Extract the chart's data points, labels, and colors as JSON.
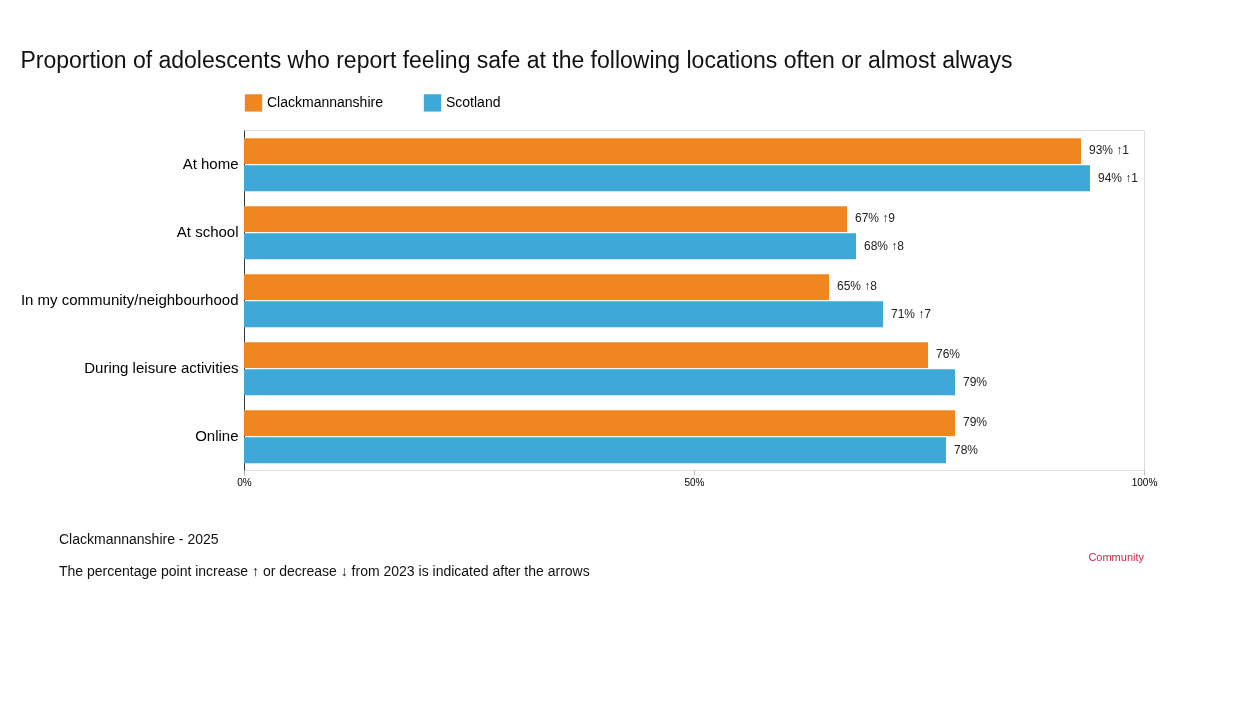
{
  "chart_data": {
    "type": "bar",
    "orientation": "horizontal",
    "title": "Proportion of adolescents who report feeling safe at the following locations often or almost always",
    "categories": [
      "At home",
      "At school",
      "In my community/neighbourhood",
      "During leisure activities",
      "Online"
    ],
    "series": [
      {
        "name": "Clackmannanshire",
        "color": "#f0861f",
        "values": [
          93,
          67,
          65,
          76,
          79
        ],
        "value_labels": [
          "93% ↑1",
          "67% ↑9",
          "65% ↑8",
          "76%",
          "79%"
        ]
      },
      {
        "name": "Scotland",
        "color": "#3ea8d8",
        "values": [
          94,
          68,
          71,
          79,
          78
        ],
        "value_labels": [
          "94% ↑1",
          "68% ↑8",
          "71% ↑7",
          "79%",
          "78%"
        ]
      }
    ],
    "xlim": [
      0,
      100
    ],
    "xticks": [
      {
        "value": 0,
        "label": "0%"
      },
      {
        "value": 50,
        "label": "50%"
      },
      {
        "value": 100,
        "label": "100%"
      }
    ],
    "legend": "top",
    "grid": false,
    "annotations": [
      "Clackmannanshire - 2025",
      "The percentage point increase ↑ or decrease ↓ from 2023 is indicated after the arrows",
      "Community"
    ]
  }
}
